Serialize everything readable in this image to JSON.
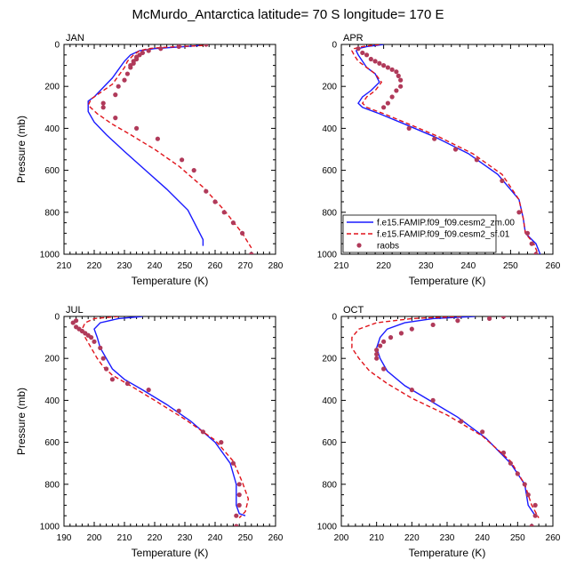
{
  "title": "McMurdo_Antarctica  latitude= 70 S longitude= 170 E",
  "colors": {
    "model_zm": "#1a1aff",
    "model_sf": "#e0141b",
    "raobs": "#b03a5a"
  },
  "legend": {
    "entries": [
      {
        "label": "f.e15.FAMIP.f09_f09.cesm2_zm.00",
        "style": "solid",
        "color": "#1a1aff"
      },
      {
        "label": "f.e15.FAMIP.f09_f09.cesm2_sf.01",
        "style": "dashed",
        "color": "#e0141b"
      },
      {
        "label": "raobs",
        "style": "dots",
        "color": "#b03a5a"
      }
    ]
  },
  "chart_data": [
    {
      "type": "line",
      "panel": "JAN",
      "xlabel": "Temperature (K)",
      "ylabel": "Pressure (mb)",
      "xlim": [
        210,
        280
      ],
      "ylim": [
        0,
        1000
      ],
      "y_reversed": true,
      "xticks": [
        210,
        220,
        230,
        240,
        250,
        260,
        270,
        280
      ],
      "yticks": [
        0,
        200,
        400,
        600,
        800,
        1000
      ],
      "series": [
        {
          "name": "f.e15.FAMIP.f09_f09.cesm2_zm.00",
          "style": "solid",
          "x": [
            255,
            250,
            245,
            240,
            235,
            232,
            230,
            228,
            226,
            224,
            222,
            220,
            218,
            218,
            220,
            224,
            230,
            237,
            244,
            251,
            256,
            256
          ],
          "y": [
            5,
            10,
            15,
            20,
            30,
            50,
            80,
            120,
            160,
            190,
            220,
            250,
            270,
            320,
            370,
            430,
            510,
            600,
            690,
            790,
            930,
            960
          ]
        },
        {
          "name": "f.e15.FAMIP.f09_f09.cesm2_sf.01",
          "style": "dashed",
          "x": [
            256,
            248,
            242,
            238,
            235,
            233,
            231,
            230,
            228,
            226,
            222,
            219,
            218,
            221,
            226,
            232,
            240,
            248,
            256,
            263,
            269,
            272
          ],
          "y": [
            5,
            10,
            15,
            20,
            30,
            50,
            80,
            110,
            150,
            190,
            230,
            260,
            290,
            330,
            380,
            430,
            500,
            580,
            680,
            790,
            900,
            970
          ]
        },
        {
          "name": "raobs",
          "style": "dots",
          "x": [
            257,
            248,
            242,
            238,
            236,
            235,
            234,
            234,
            233,
            233,
            232,
            232,
            231,
            230,
            228,
            227,
            223,
            223,
            227,
            234,
            241,
            249,
            253,
            257,
            260,
            263,
            266,
            269,
            272
          ],
          "y": [
            0,
            10,
            20,
            30,
            40,
            50,
            60,
            70,
            80,
            90,
            100,
            110,
            140,
            170,
            200,
            240,
            280,
            300,
            350,
            400,
            450,
            550,
            600,
            700,
            750,
            800,
            850,
            900,
            1000
          ]
        }
      ]
    },
    {
      "type": "line",
      "panel": "APR",
      "xlabel": "Temperature (K)",
      "ylabel": "",
      "xlim": [
        210,
        260
      ],
      "ylim": [
        0,
        1000
      ],
      "y_reversed": true,
      "xticks": [
        210,
        220,
        230,
        240,
        250,
        260
      ],
      "yticks": [
        0,
        200,
        400,
        600,
        800,
        1000
      ],
      "series": [
        {
          "name": "f.e15.FAMIP.f09_f09.cesm2_zm.00",
          "style": "solid",
          "x": [
            220,
            216,
            214,
            213.5,
            214,
            215,
            216,
            218,
            219,
            217,
            215,
            214,
            215,
            219,
            225,
            232,
            240,
            247,
            252,
            253,
            253.5,
            256,
            257
          ],
          "y": [
            0,
            10,
            20,
            30,
            50,
            80,
            110,
            140,
            180,
            220,
            250,
            280,
            300,
            330,
            380,
            440,
            520,
            620,
            740,
            830,
            900,
            950,
            1000
          ]
        },
        {
          "name": "f.e15.FAMIP.f09_f09.cesm2_sf.01",
          "style": "dashed",
          "x": [
            219,
            215,
            213,
            212.5,
            213,
            214,
            216,
            218,
            219.5,
            218,
            216,
            215,
            216,
            220,
            226,
            233,
            241,
            248,
            252,
            253,
            253.5,
            255.5,
            256.5
          ],
          "y": [
            0,
            10,
            20,
            30,
            50,
            80,
            110,
            140,
            180,
            220,
            250,
            280,
            300,
            330,
            380,
            440,
            520,
            620,
            740,
            830,
            900,
            950,
            1000
          ]
        },
        {
          "name": "raobs",
          "style": "dots",
          "x": [
            214,
            215,
            216,
            217,
            218,
            219,
            220,
            221,
            222,
            223,
            223.5,
            224,
            224,
            223,
            222,
            221,
            220,
            226,
            232,
            237,
            242,
            248,
            252,
            254,
            255,
            256
          ],
          "y": [
            20,
            40,
            50,
            70,
            80,
            90,
            100,
            110,
            120,
            130,
            150,
            170,
            200,
            220,
            250,
            280,
            300,
            400,
            450,
            500,
            550,
            650,
            800,
            900,
            950,
            1000
          ]
        }
      ]
    },
    {
      "type": "line",
      "panel": "JUL",
      "xlabel": "Temperature (K)",
      "ylabel": "Pressure (mb)",
      "xlim": [
        190,
        260
      ],
      "ylim": [
        0,
        1000
      ],
      "y_reversed": true,
      "xticks": [
        190,
        200,
        210,
        220,
        230,
        240,
        250,
        260
      ],
      "yticks": [
        0,
        200,
        400,
        600,
        800,
        1000
      ],
      "series": [
        {
          "name": "f.e15.FAMIP.f09_f09.cesm2_zm.00",
          "style": "solid",
          "x": [
            216,
            208,
            202,
            200,
            201,
            202,
            204,
            206,
            210,
            216,
            224,
            232,
            240,
            245,
            247,
            247,
            248,
            250
          ],
          "y": [
            0,
            10,
            30,
            60,
            100,
            150,
            200,
            250,
            300,
            350,
            420,
            500,
            600,
            700,
            800,
            900,
            940,
            950
          ]
        },
        {
          "name": "f.e15.FAMIP.f09_f09.cesm2_sf.01",
          "style": "dashed",
          "x": [
            208,
            200,
            197,
            196,
            197,
            199,
            201,
            203,
            206,
            212,
            220,
            230,
            240,
            246,
            249,
            251,
            250,
            248
          ],
          "y": [
            0,
            10,
            30,
            60,
            100,
            150,
            200,
            240,
            280,
            330,
            400,
            490,
            590,
            690,
            790,
            870,
            930,
            960
          ]
        },
        {
          "name": "raobs",
          "style": "dots",
          "x": [
            194,
            193,
            194,
            195,
            196,
            197,
            198,
            199,
            200,
            202,
            203,
            204,
            206,
            211,
            218,
            228,
            236,
            242,
            246,
            248,
            248,
            248,
            247,
            247
          ],
          "y": [
            20,
            30,
            50,
            60,
            70,
            80,
            90,
            100,
            120,
            150,
            200,
            250,
            300,
            320,
            350,
            450,
            550,
            600,
            700,
            800,
            850,
            900,
            950,
            1000
          ]
        }
      ]
    },
    {
      "type": "line",
      "panel": "OCT",
      "xlabel": "Temperature (K)",
      "ylabel": "",
      "xlim": [
        200,
        260
      ],
      "ylim": [
        0,
        1000
      ],
      "y_reversed": true,
      "xticks": [
        200,
        210,
        220,
        230,
        240,
        250,
        260
      ],
      "yticks": [
        0,
        200,
        400,
        600,
        800,
        1000
      ],
      "series": [
        {
          "name": "f.e15.FAMIP.f09_f09.cesm2_zm.00",
          "style": "solid",
          "x": [
            238,
            226,
            218,
            213,
            211,
            210,
            211,
            213,
            218,
            225,
            233,
            241,
            248,
            252,
            253,
            255
          ],
          "y": [
            0,
            10,
            30,
            60,
            100,
            150,
            200,
            260,
            330,
            400,
            480,
            580,
            700,
            800,
            900,
            950
          ]
        },
        {
          "name": "f.e15.FAMIP.f09_f09.cesm2_sf.01",
          "style": "dashed",
          "x": [
            234,
            220,
            210,
            205,
            203,
            203,
            205,
            208,
            213,
            220,
            230,
            240,
            248,
            252,
            254,
            256
          ],
          "y": [
            0,
            10,
            30,
            60,
            100,
            150,
            200,
            260,
            320,
            390,
            470,
            570,
            690,
            800,
            900,
            960
          ]
        },
        {
          "name": "raobs",
          "style": "dots",
          "x": [
            246,
            242,
            233,
            226,
            220,
            217,
            214,
            212,
            211,
            210,
            210,
            210,
            212,
            220,
            226,
            234,
            240,
            246,
            248,
            250,
            252,
            253,
            255,
            255,
            254
          ],
          "y": [
            0,
            10,
            20,
            40,
            60,
            80,
            100,
            120,
            140,
            160,
            180,
            200,
            250,
            350,
            400,
            500,
            550,
            650,
            700,
            750,
            800,
            850,
            900,
            950,
            1000
          ]
        }
      ]
    }
  ]
}
